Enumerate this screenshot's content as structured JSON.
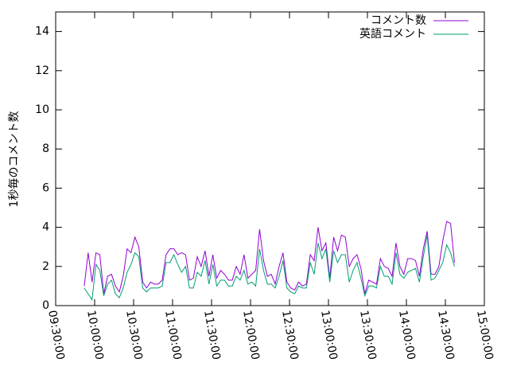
{
  "chart_data": {
    "type": "line",
    "ylabel": "1秒毎のコメント数",
    "xlim": [
      "09:30:00",
      "15:00:00"
    ],
    "xticks": [
      "09:30:00",
      "10:00:00",
      "10:30:00",
      "11:00:00",
      "11:30:00",
      "12:00:00",
      "12:30:00",
      "13:00:00",
      "13:30:00",
      "14:00:00",
      "14:30:00",
      "15:00:00"
    ],
    "ylim": [
      0,
      15
    ],
    "yticks": [
      0,
      2,
      4,
      6,
      8,
      10,
      12,
      14
    ],
    "legend": "top-right",
    "x": [
      "09:52:00",
      "09:55:00",
      "09:58:00",
      "10:01:00",
      "10:04:00",
      "10:07:00",
      "10:10:00",
      "10:13:00",
      "10:16:00",
      "10:19:00",
      "10:22:00",
      "10:25:00",
      "10:28:00",
      "10:31:00",
      "10:34:00",
      "10:37:00",
      "10:40:00",
      "10:43:00",
      "10:46:00",
      "10:49:00",
      "10:52:00",
      "10:55:00",
      "10:58:00",
      "11:01:00",
      "11:04:00",
      "11:07:00",
      "11:10:00",
      "11:13:00",
      "11:16:00",
      "11:19:00",
      "11:22:00",
      "11:25:00",
      "11:28:00",
      "11:31:00",
      "11:34:00",
      "11:37:00",
      "11:40:00",
      "11:43:00",
      "11:46:00",
      "11:49:00",
      "11:52:00",
      "11:55:00",
      "11:58:00",
      "12:01:00",
      "12:04:00",
      "12:07:00",
      "12:10:00",
      "12:13:00",
      "12:16:00",
      "12:19:00",
      "12:22:00",
      "12:25:00",
      "12:28:00",
      "12:31:00",
      "12:34:00",
      "12:37:00",
      "12:40:00",
      "12:43:00",
      "12:46:00",
      "12:49:00",
      "12:52:00",
      "12:55:00",
      "12:58:00",
      "13:01:00",
      "13:04:00",
      "13:07:00",
      "13:10:00",
      "13:13:00",
      "13:16:00",
      "13:19:00",
      "13:22:00",
      "13:25:00",
      "13:28:00",
      "13:31:00",
      "13:34:00",
      "13:37:00",
      "13:40:00",
      "13:43:00",
      "13:46:00",
      "13:49:00",
      "13:52:00",
      "13:55:00",
      "13:58:00",
      "14:01:00",
      "14:04:00",
      "14:07:00",
      "14:10:00",
      "14:13:00",
      "14:16:00",
      "14:19:00",
      "14:22:00",
      "14:25:00",
      "14:28:00",
      "14:31:00",
      "14:34:00",
      "14:37:00"
    ],
    "series": [
      {
        "name": "コメント数",
        "color": "#9400d3",
        "values": [
          1.0,
          2.7,
          1.2,
          2.7,
          2.6,
          0.6,
          1.5,
          1.6,
          1.0,
          0.7,
          1.5,
          2.9,
          2.7,
          3.5,
          3.0,
          1.2,
          0.9,
          1.2,
          1.1,
          1.1,
          1.3,
          2.6,
          2.9,
          2.9,
          2.6,
          2.7,
          2.6,
          1.3,
          1.4,
          2.5,
          2.0,
          2.8,
          1.5,
          2.6,
          1.4,
          1.8,
          1.6,
          1.3,
          1.3,
          2.0,
          1.6,
          2.6,
          1.4,
          1.6,
          1.8,
          3.9,
          2.3,
          1.5,
          1.6,
          1.1,
          2.0,
          2.7,
          1.2,
          0.9,
          0.8,
          1.2,
          1.0,
          1.1,
          2.6,
          2.3,
          4.0,
          2.8,
          3.2,
          1.4,
          3.5,
          2.8,
          3.6,
          3.5,
          2.0,
          2.4,
          2.6,
          1.9,
          0.6,
          1.3,
          1.2,
          1.1,
          2.4,
          2.0,
          1.9,
          1.5,
          3.2,
          2.0,
          1.6,
          2.4,
          2.4,
          2.3,
          1.5,
          2.9,
          3.8,
          1.6,
          1.6,
          2.0,
          3.3,
          4.3,
          4.2,
          2.2
        ]
      },
      {
        "name": "英語コメント",
        "color": "#009e73",
        "values": [
          0.9,
          0.6,
          0.3,
          2.1,
          1.8,
          0.5,
          1.1,
          1.3,
          0.6,
          0.4,
          0.9,
          1.7,
          2.1,
          2.7,
          2.5,
          0.9,
          0.7,
          0.9,
          0.9,
          0.9,
          1.0,
          2.2,
          2.2,
          2.6,
          2.1,
          1.7,
          2.0,
          0.9,
          0.9,
          1.7,
          1.5,
          2.3,
          1.1,
          2.1,
          1.0,
          1.3,
          1.3,
          1.0,
          1.0,
          1.5,
          1.3,
          1.8,
          1.1,
          1.2,
          1.0,
          2.9,
          1.8,
          1.1,
          1.1,
          0.9,
          1.5,
          2.3,
          0.9,
          0.7,
          0.6,
          1.0,
          0.9,
          0.9,
          2.2,
          1.6,
          3.2,
          2.4,
          2.9,
          1.2,
          2.8,
          2.2,
          2.6,
          2.6,
          1.2,
          1.8,
          2.2,
          1.4,
          0.5,
          1.0,
          1.0,
          0.9,
          2.0,
          1.5,
          1.5,
          1.1,
          2.7,
          1.6,
          1.4,
          1.7,
          1.8,
          1.9,
          1.2,
          2.5,
          3.6,
          1.3,
          1.4,
          1.8,
          2.2,
          3.1,
          2.7,
          2.0
        ]
      }
    ]
  }
}
